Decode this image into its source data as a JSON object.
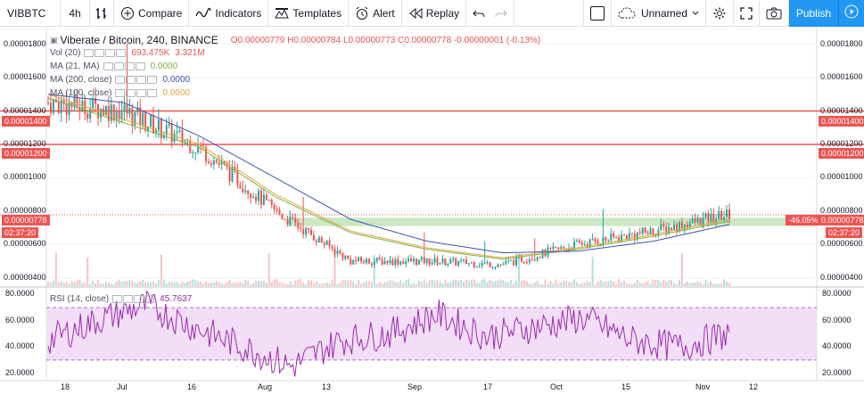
{
  "toolbar": {
    "symbol": "VIBBTC",
    "interval": "4h",
    "compare": "Compare",
    "indicators": "Indicators",
    "templates": "Templates",
    "alert": "Alert",
    "replay": "Replay",
    "layout_name": "Unnamed",
    "publish": "Publish"
  },
  "legend": {
    "title": "Viberate / Bitcoin, 240, BINANCE",
    "ohlc": "O0.00000779 H0.00000784 L0.00000773 C0.00000778 -0.00000001 (-0.13%)",
    "vol_label": "Vol (20)",
    "vol_value1": "693.475K",
    "vol_value2": "3.321M",
    "ma21_label": "MA (21, MA)",
    "ma21_value": "0.0000",
    "ma200_label": "MA (200, close)",
    "ma200_value": "0.0000",
    "ma100_label": "MA (100, close)",
    "ma100_value": "0.0000",
    "rsi_label": "RSI (14, close)",
    "rsi_value": "45.7637"
  },
  "price_axis": [
    "0.00001800",
    "0.00001600",
    "0.00001400",
    "0.00001200",
    "0.00001000",
    "0.00000800",
    "0.00000600",
    "0.00000400"
  ],
  "rsi_axis": [
    "80.0000",
    "60.0000",
    "40.0000",
    "20.0000"
  ],
  "time_axis": [
    "18",
    "Jul",
    "16",
    "Aug",
    "13",
    "Sep",
    "17",
    "Oct",
    "15",
    "Nov",
    "12"
  ],
  "levels": {
    "resistance_1": "0.00001400",
    "resistance_2": "0.00001200",
    "last_price": "0.00000778",
    "countdown": "02:37:20",
    "percent": "-46.05%"
  },
  "colors": {
    "accent": "#2196f3",
    "bear": "#ef5350",
    "bull": "#26a69a",
    "ma_orange": "#f5a623",
    "ma_green": "#7cb342",
    "ma_blue": "#3f51b5",
    "rsi_line": "#9c27b0",
    "rsi_band": "#f3e0f7",
    "support_zone": "#c8e6c9"
  },
  "icons": {
    "bars": "bars-style-icon",
    "compare": "plus-circle-icon",
    "indicators": "indicators-wave-icon",
    "templates": "templates-icon",
    "alert": "alarm-clock-icon",
    "replay": "replay-icon",
    "undo": "undo-icon",
    "redo": "redo-icon",
    "cloud": "cloud-icon",
    "settings": "gear-icon",
    "fullscreen": "fullscreen-icon",
    "snapshot": "camera-icon",
    "play": "play-icon"
  },
  "chart_data": {
    "type": "candlestick",
    "symbol": "Viberate / Bitcoin",
    "x": [
      "18",
      "Jul",
      "16",
      "Aug",
      "13",
      "Sep",
      "17",
      "Oct",
      "15",
      "Nov"
    ],
    "close": [
      1.45e-05,
      1.4e-05,
      1.18e-05,
      8e-06,
      5e-06,
      5e-06,
      4.8e-06,
      6e-06,
      6.8e-06,
      7.8e-06
    ],
    "ma_orange": [
      1.5e-05,
      1.35e-05,
      1.2e-05,
      9e-06,
      6.8e-06,
      5.8e-06,
      5.2e-06,
      5.8e-06,
      6.6e-06,
      7.5e-06
    ],
    "ma_blue": [
      1.5e-05,
      1.45e-05,
      1.25e-05,
      1e-05,
      7.5e-06,
      6.2e-06,
      5.5e-06,
      5.6e-06,
      6.2e-06,
      7.2e-06
    ],
    "ylim": [
      3.5e-06,
      1.9e-05
    ],
    "support_zone": [
      7.1e-06,
      7.6e-06
    ],
    "rsi": {
      "values": [
        45,
        60,
        72,
        55,
        40,
        25,
        45,
        50,
        65,
        48,
        55,
        62,
        45,
        40,
        50
      ],
      "ylim": [
        15,
        85
      ],
      "band": [
        30,
        70
      ]
    }
  }
}
